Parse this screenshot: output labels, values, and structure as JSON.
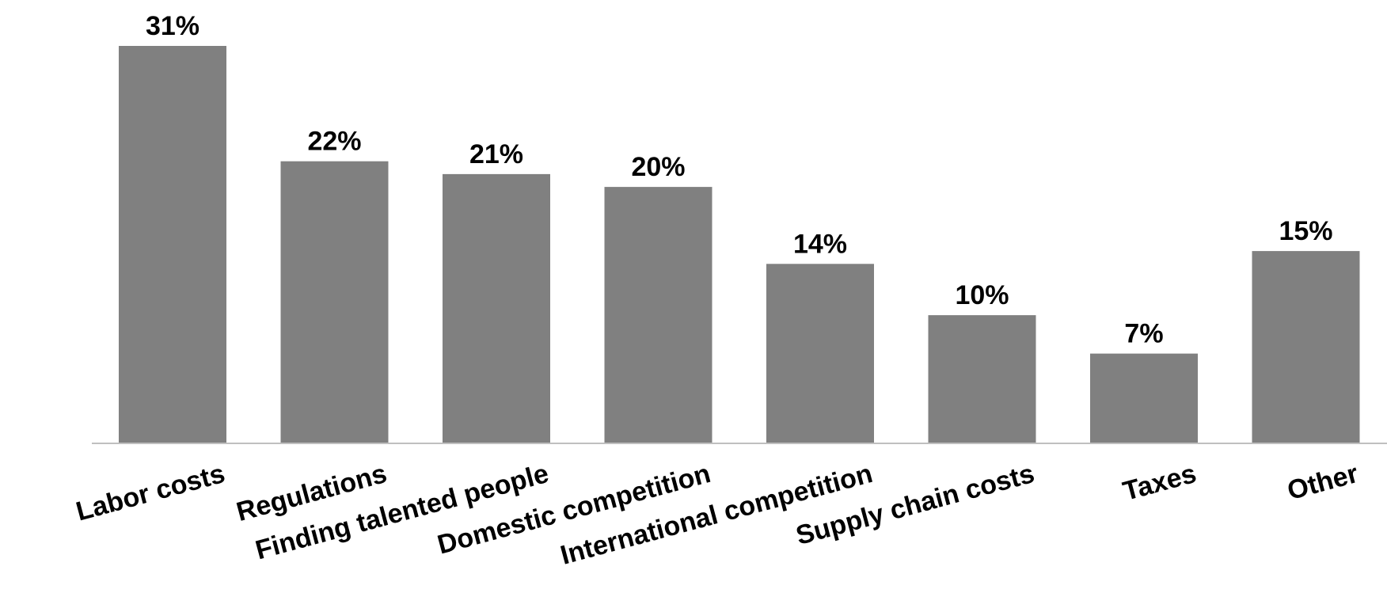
{
  "chart_data": {
    "type": "bar",
    "categories": [
      "Labor costs",
      "Regulations",
      "Finding talented people",
      "Domestic competition",
      "International competition",
      "Supply chain costs",
      "Taxes",
      "Other"
    ],
    "values": [
      31,
      22,
      21,
      20,
      14,
      10,
      7,
      15
    ],
    "value_labels": [
      "31%",
      "22%",
      "21%",
      "20%",
      "14%",
      "10%",
      "7%",
      "15%"
    ],
    "unit": "%",
    "title": "",
    "xlabel": "",
    "ylabel": "",
    "ylim": [
      0,
      31
    ],
    "grid": false,
    "legend": "none",
    "tick_label_rotation_deg": -15,
    "colors": {
      "bar": "#808080",
      "axis": "#bfbfbf",
      "text": "#000000"
    }
  }
}
